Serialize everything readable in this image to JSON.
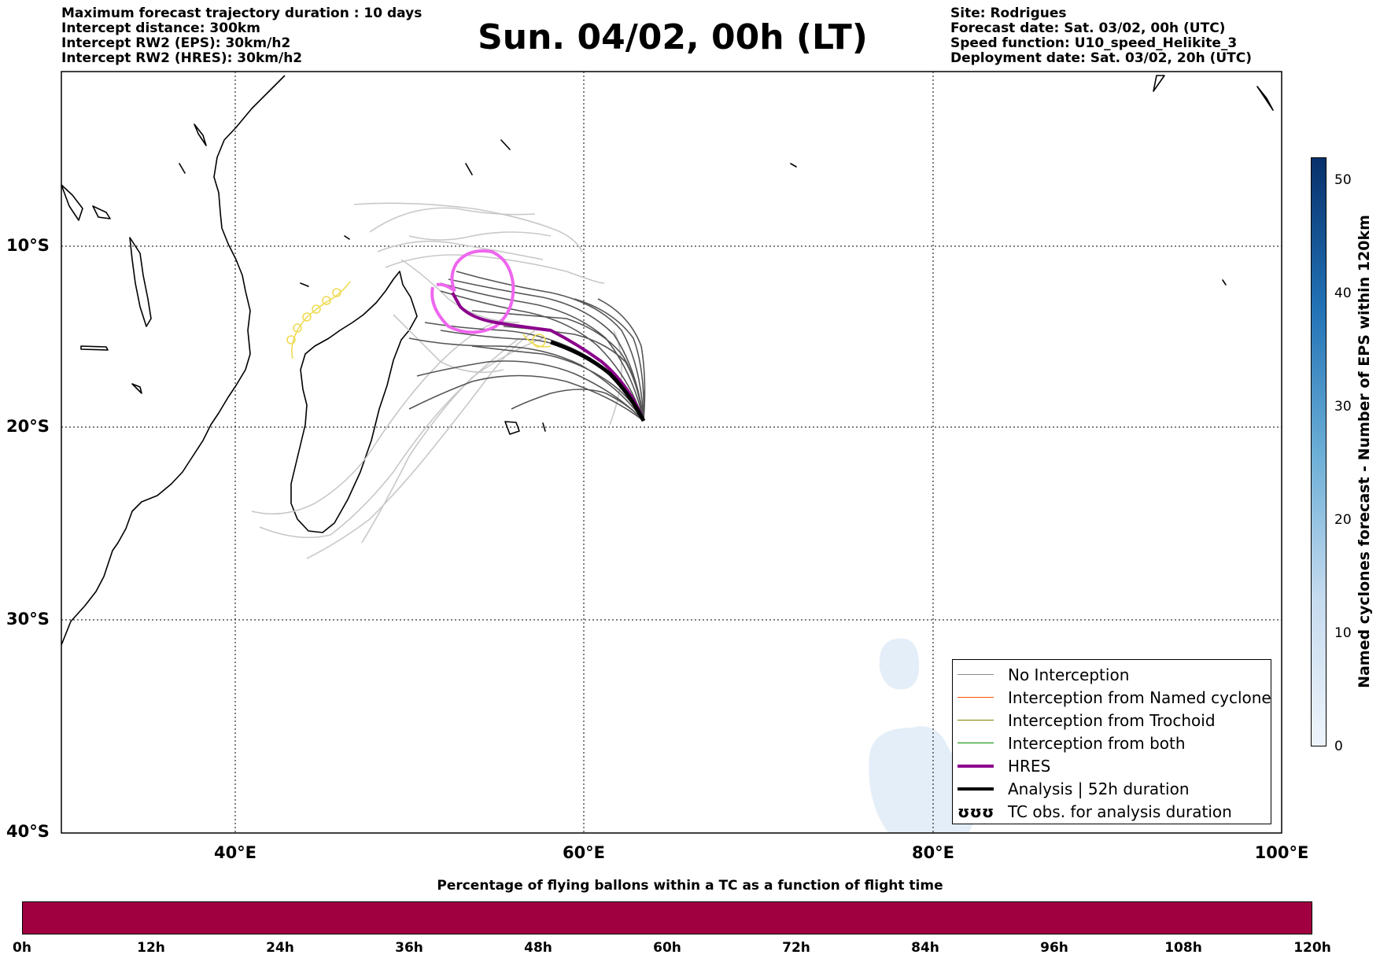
{
  "header_left": [
    "Maximum forecast trajectory duration : 10 days",
    "Intercept distance: 300km",
    "Intercept RW2 (EPS):  30km/h2",
    "Intercept RW2 (HRES): 30km/h2"
  ],
  "header_right": [
    "Site: Rodrigues",
    "Forecast date: Sat. 03/02, 00h (UTC)",
    "Speed function: U10_speed_Helikite_3",
    "Deployment date: Sat. 03/02, 20h (UTC)"
  ],
  "title": "Sun. 04/02, 00h (LT)",
  "map": {
    "lon_labels": [
      "40°E",
      "60°E",
      "80°E",
      "100°E"
    ],
    "lat_labels": [
      "10°S",
      "20°S",
      "30°S",
      "40°S"
    ],
    "extent": {
      "lon": [
        30,
        100
      ],
      "lat": [
        -40,
        -0.5
      ]
    },
    "grid": "dotted",
    "colors": {
      "eps_tracks": "#555555",
      "eps_tracks_far": "#c8c8c8",
      "hres": "#8b008b",
      "analysis": "#000000",
      "tc_obs": "#eedc55",
      "named_cyclone_area": "#e4eef8",
      "trochoid_loop": "#ee66ee"
    }
  },
  "legend": [
    {
      "label": "No Interception",
      "color": "#888888",
      "style": "thin"
    },
    {
      "label": "Interception from Named cyclone",
      "color": "#ff5500",
      "style": "thin"
    },
    {
      "label": "Interception from Trochoid",
      "color": "#808000",
      "style": "thin"
    },
    {
      "label": "Interception from both",
      "color": "#008800",
      "style": "thin"
    },
    {
      "label": "HRES",
      "color": "#8b008b",
      "style": "thick"
    },
    {
      "label": "Analysis | 52h duration",
      "color": "#000000",
      "style": "thick"
    },
    {
      "label": "TC obs. for analysis duration",
      "glyph": "ʊʊʊ"
    }
  ],
  "colorbar_right": {
    "label": "Named cyclones forecast - Number of EPS within 120km",
    "ticks": [
      "0",
      "10",
      "20",
      "30",
      "40",
      "50"
    ],
    "range": [
      0,
      52
    ],
    "colors": [
      "#eef4fb",
      "#08306b"
    ]
  },
  "colorbar_bottom": {
    "title": "Percentage of flying ballons within a TC as a function of flight time",
    "ticks": [
      "0h",
      "12h",
      "24h",
      "36h",
      "48h",
      "60h",
      "72h",
      "84h",
      "96h",
      "108h",
      "120h"
    ],
    "color": "#a00040"
  }
}
